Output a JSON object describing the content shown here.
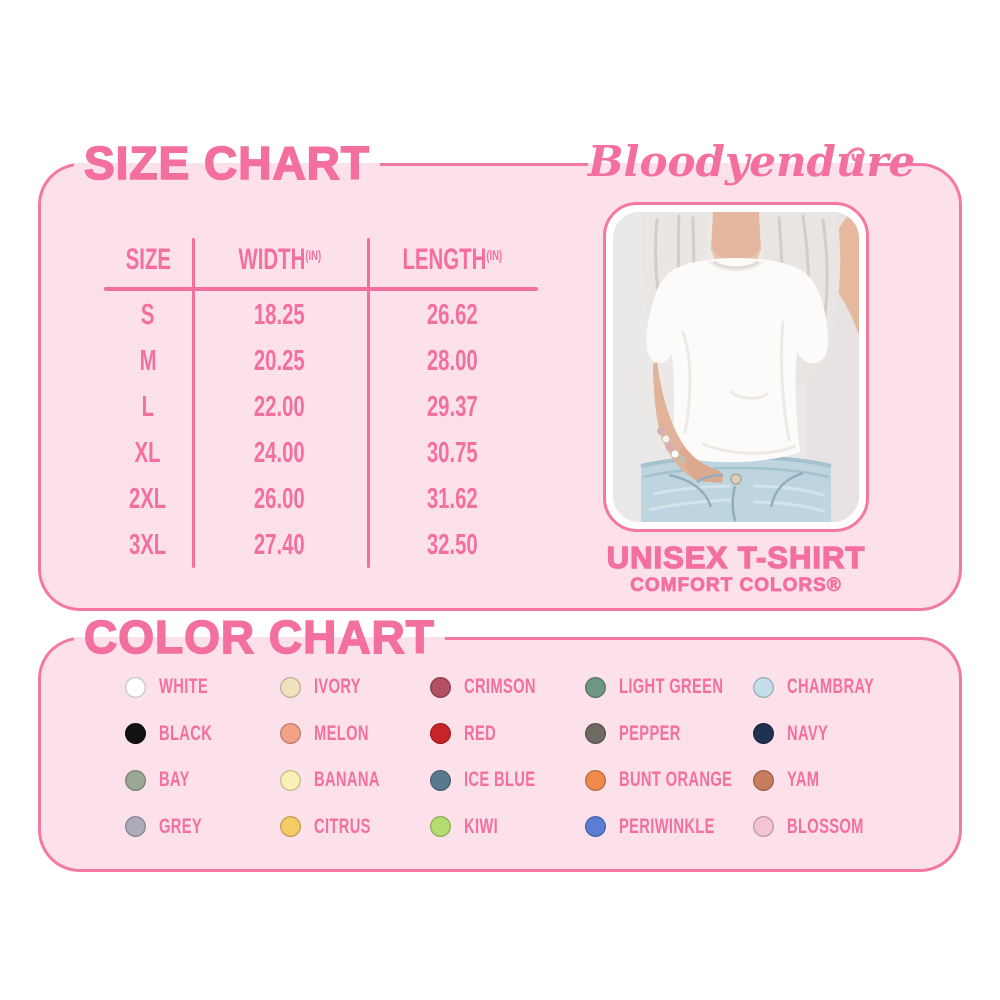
{
  "brand": "Bloodyendure",
  "theme": {
    "text_pink": "#F3709E",
    "border_pink": "#F478A3",
    "panel_pink": "#FCE1EB",
    "background": "#FFFFFF"
  },
  "size_section": {
    "title": "SIZE CHART",
    "table": {
      "headers": [
        {
          "label": "SIZE",
          "unit": ""
        },
        {
          "label": "WIDTH",
          "unit": "(IN)"
        },
        {
          "label": "LENGTH",
          "unit": "(IN)"
        }
      ],
      "rows": [
        [
          "S",
          "18.25",
          "26.62"
        ],
        [
          "M",
          "20.25",
          "28.00"
        ],
        [
          "L",
          "22.00",
          "29.37"
        ],
        [
          "XL",
          "24.00",
          "30.75"
        ],
        [
          "2XL",
          "26.00",
          "31.62"
        ],
        [
          "3XL",
          "27.40",
          "32.50"
        ]
      ]
    },
    "photo": {
      "description": "model wearing oversized white unisex t-shirt tucked into light-wash jeans"
    },
    "product_name": "UNISEX T-SHIRT",
    "product_line": "COMFORT COLORS®"
  },
  "color_section": {
    "title": "COLOR CHART",
    "swatches": [
      {
        "name": "WHITE",
        "hex": "#FFFFFF"
      },
      {
        "name": "IVORY",
        "hex": "#F1E2BE"
      },
      {
        "name": "CRIMSON",
        "hex": "#B25065"
      },
      {
        "name": "LIGHT GREEN",
        "hex": "#6E9681"
      },
      {
        "name": "CHAMBRAY",
        "hex": "#C4DFEA"
      },
      {
        "name": "BLACK",
        "hex": "#121212"
      },
      {
        "name": "MELON",
        "hex": "#F3A187"
      },
      {
        "name": "RED",
        "hex": "#C82428"
      },
      {
        "name": "PEPPER",
        "hex": "#6D6963"
      },
      {
        "name": "NAVY",
        "hex": "#20304F"
      },
      {
        "name": "BAY",
        "hex": "#9CA695"
      },
      {
        "name": "BANANA",
        "hex": "#F9F0B6"
      },
      {
        "name": "ICE BLUE",
        "hex": "#597A8D"
      },
      {
        "name": "BUNT ORANGE",
        "hex": "#EF8A4C"
      },
      {
        "name": "YAM",
        "hex": "#C67D5F"
      },
      {
        "name": "GREY",
        "hex": "#ACABB9"
      },
      {
        "name": "CITRUS",
        "hex": "#F5CB66"
      },
      {
        "name": "KIWI",
        "hex": "#B4DD70"
      },
      {
        "name": "PERIWINKLE",
        "hex": "#5A7ED3"
      },
      {
        "name": "BLOSSOM",
        "hex": "#F4C4D5"
      }
    ]
  },
  "chart_data": {
    "type": "table",
    "title": "SIZE CHART",
    "columns": [
      "SIZE",
      "WIDTH (IN)",
      "LENGTH (IN)"
    ],
    "rows": [
      [
        "S",
        18.25,
        26.62
      ],
      [
        "M",
        20.25,
        28.0
      ],
      [
        "L",
        22.0,
        29.37
      ],
      [
        "XL",
        24.0,
        30.75
      ],
      [
        "2XL",
        26.0,
        31.62
      ],
      [
        "3XL",
        27.4,
        32.5
      ]
    ]
  }
}
